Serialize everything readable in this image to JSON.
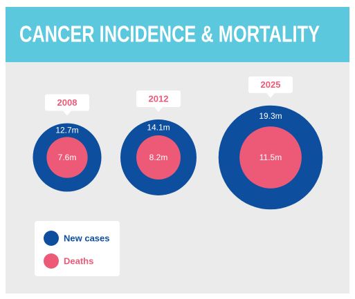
{
  "chart_data": {
    "type": "bubble",
    "title": "CANCER INCIDENCE & MORTALITY",
    "categories": [
      "2008",
      "2012",
      "2025"
    ],
    "series": [
      {
        "name": "New cases",
        "color": "#0d4f9e",
        "values": [
          12.7,
          14.1,
          19.3
        ],
        "value_labels": [
          "12.7m",
          "14.1m",
          "19.3m"
        ]
      },
      {
        "name": "Deaths",
        "color": "#ec5a78",
        "values": [
          7.6,
          8.2,
          11.5
        ],
        "value_labels": [
          "7.6m",
          "8.2m",
          "11.5m"
        ]
      }
    ]
  }
}
